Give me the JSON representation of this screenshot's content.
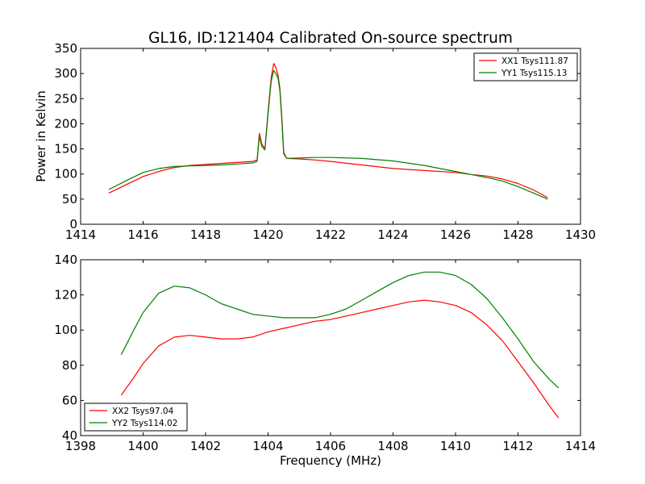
{
  "figure": {
    "title": "GL16, ID:121404 Calibrated On-source spectrum"
  },
  "colors": {
    "xx": "#ff0000",
    "yy": "#008000"
  },
  "chart_data": [
    {
      "type": "line",
      "title": "GL16, ID:121404 Calibrated On-source spectrum",
      "xlabel": "",
      "ylabel": "Power in Kelvin",
      "xlim": [
        1414,
        1430
      ],
      "ylim": [
        0,
        350
      ],
      "xticks": [
        1414,
        1416,
        1418,
        1420,
        1422,
        1424,
        1426,
        1428,
        1430
      ],
      "yticks": [
        0,
        50,
        100,
        150,
        200,
        250,
        300,
        350
      ],
      "legend_position": "top-right",
      "series": [
        {
          "name": "XX1 Tsys111.87",
          "color": "#ff0000",
          "x": [
            1414.9,
            1415.5,
            1416,
            1416.5,
            1417,
            1417.5,
            1418,
            1418.5,
            1419,
            1419.5,
            1419.65,
            1419.72,
            1419.8,
            1419.9,
            1420.0,
            1420.1,
            1420.18,
            1420.25,
            1420.32,
            1420.38,
            1420.45,
            1420.5,
            1420.6,
            1421,
            1421.5,
            1422,
            1423,
            1424,
            1425,
            1426,
            1426.5,
            1427,
            1427.5,
            1428,
            1428.5,
            1428.95
          ],
          "values": [
            62,
            80,
            95,
            105,
            113,
            117,
            119,
            121,
            123,
            125,
            128,
            181,
            160,
            150,
            225,
            292,
            320,
            312,
            296,
            270,
            205,
            143,
            131,
            130,
            128,
            125,
            118,
            111,
            107,
            103,
            99,
            96,
            90,
            81,
            68,
            53
          ]
        },
        {
          "name": "YY1 Tsys115.13",
          "color": "#008000",
          "x": [
            1414.9,
            1415.5,
            1416,
            1416.5,
            1417,
            1417.5,
            1418,
            1418.5,
            1419,
            1419.5,
            1419.65,
            1419.72,
            1419.8,
            1419.9,
            1420.0,
            1420.1,
            1420.18,
            1420.25,
            1420.32,
            1420.38,
            1420.45,
            1420.5,
            1420.6,
            1421,
            1421.5,
            1422,
            1423,
            1424,
            1425,
            1426,
            1426.5,
            1427,
            1427.5,
            1428,
            1428.5,
            1428.95
          ],
          "values": [
            69,
            88,
            103,
            111,
            115,
            116,
            117,
            118,
            120,
            122,
            125,
            175,
            155,
            148,
            220,
            285,
            306,
            300,
            290,
            265,
            198,
            140,
            131,
            132,
            133,
            133,
            131,
            126,
            117,
            105,
            99,
            93,
            86,
            75,
            62,
            50
          ]
        }
      ]
    },
    {
      "type": "line",
      "title": "",
      "xlabel": "Frequency (MHz)",
      "ylabel": "",
      "xlim": [
        1398,
        1414
      ],
      "ylim": [
        40,
        140
      ],
      "xticks": [
        1398,
        1400,
        1402,
        1404,
        1406,
        1408,
        1410,
        1412,
        1414
      ],
      "yticks": [
        40,
        60,
        80,
        100,
        120,
        140
      ],
      "legend_position": "bottom-left",
      "series": [
        {
          "name": "XX2 Tsys97.04",
          "color": "#ff0000",
          "x": [
            1399.3,
            1399.7,
            1400,
            1400.5,
            1401,
            1401.5,
            1402,
            1402.5,
            1403,
            1403.5,
            1404,
            1404.5,
            1405,
            1405.5,
            1406,
            1406.5,
            1407,
            1407.5,
            1408,
            1408.5,
            1409,
            1409.5,
            1410,
            1410.5,
            1411,
            1411.5,
            1412,
            1412.5,
            1413,
            1413.3
          ],
          "values": [
            63,
            73,
            81,
            91,
            96,
            97,
            96,
            95,
            95,
            96,
            99,
            101,
            103,
            105,
            106,
            108,
            110,
            112,
            114,
            116,
            117,
            116,
            114,
            110,
            103,
            94,
            82,
            70,
            57,
            50
          ]
        },
        {
          "name": "YY2 Tsys114.02",
          "color": "#008000",
          "x": [
            1399.3,
            1399.7,
            1400,
            1400.5,
            1401,
            1401.5,
            1402,
            1402.5,
            1403,
            1403.5,
            1404,
            1404.5,
            1405,
            1405.5,
            1406,
            1406.5,
            1407,
            1407.5,
            1408,
            1408.5,
            1409,
            1409.5,
            1410,
            1410.5,
            1411,
            1411.5,
            1412,
            1412.5,
            1413,
            1413.3
          ],
          "values": [
            86,
            100,
            110,
            121,
            125,
            124,
            120,
            115,
            112,
            109,
            108,
            107,
            107,
            107,
            109,
            112,
            117,
            122,
            127,
            131,
            133,
            133,
            131,
            126,
            118,
            107,
            95,
            82,
            72,
            67
          ]
        }
      ]
    }
  ]
}
